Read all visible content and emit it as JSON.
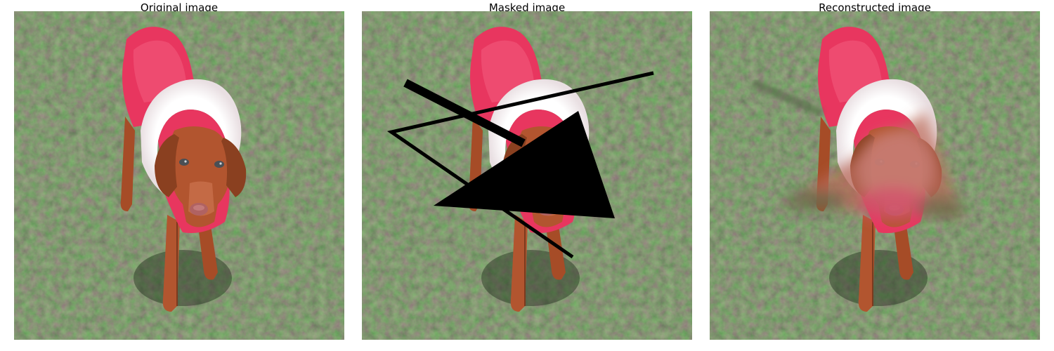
{
  "panels": [
    {
      "title": "Original image"
    },
    {
      "title": "Masked image"
    },
    {
      "title": "Reconstructed image"
    }
  ],
  "colors": {
    "grass_base": "#44573a",
    "grass_dark": "#2f3f2a",
    "grass_light": "#6f7d5c",
    "coat_red": "#e8365f",
    "coat_light": "#f25a7c",
    "fur_white": "#f6f2f2",
    "dog_brown": "#b2552f",
    "dog_dark": "#7c3a1e",
    "mask_black": "#000000"
  }
}
